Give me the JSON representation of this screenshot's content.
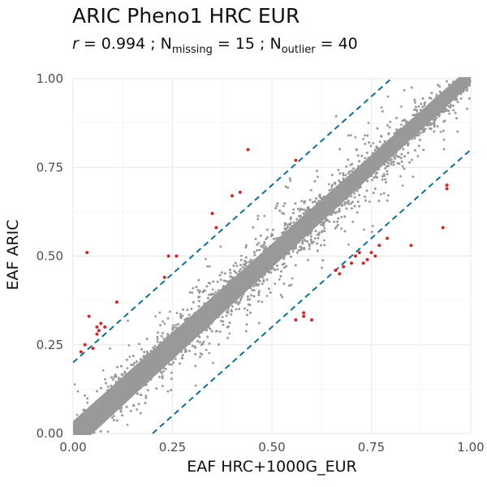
{
  "chart_data": {
    "type": "scatter",
    "title": "ARIC Pheno1 HRC EUR",
    "subtitle": {
      "r_symbol": "r",
      "r_text": " = 0.994 ; N",
      "missing_sub": "missing",
      "missing_text": " = 15 ; N",
      "outlier_sub": "outlier",
      "outlier_text": " = 40"
    },
    "xlabel": "EAF HRC+1000G_EUR",
    "ylabel": "EAF ARIC",
    "xlim": [
      0,
      1
    ],
    "ylim": [
      0,
      1
    ],
    "x_ticks": [
      "0.00",
      "0.25",
      "0.50",
      "0.75",
      "1.00"
    ],
    "y_ticks": [
      "0.00",
      "0.25",
      "0.50",
      "0.75",
      "1.00"
    ],
    "grid": true,
    "reference_lines": [
      {
        "intercept": 0.2,
        "slope": 1,
        "style": "dashed",
        "color": "#0e6f9c"
      },
      {
        "intercept": -0.2,
        "slope": 1,
        "style": "dashed",
        "color": "#0e6f9c"
      }
    ],
    "series": [
      {
        "role": "outlier",
        "color": "#d62728",
        "points": [
          [
            0.02,
            0.23
          ],
          [
            0.03,
            0.25
          ],
          [
            0.035,
            0.51
          ],
          [
            0.04,
            0.33
          ],
          [
            0.05,
            0.24
          ],
          [
            0.06,
            0.28
          ],
          [
            0.06,
            0.3
          ],
          [
            0.065,
            0.29
          ],
          [
            0.07,
            0.31
          ],
          [
            0.08,
            0.3
          ],
          [
            0.11,
            0.37
          ],
          [
            0.23,
            0.44
          ],
          [
            0.24,
            0.5
          ],
          [
            0.26,
            0.5
          ],
          [
            0.35,
            0.62
          ],
          [
            0.36,
            0.58
          ],
          [
            0.4,
            0.67
          ],
          [
            0.42,
            0.68
          ],
          [
            0.44,
            0.8
          ],
          [
            0.56,
            0.77
          ],
          [
            0.56,
            0.32
          ],
          [
            0.58,
            0.33
          ],
          [
            0.58,
            0.34
          ],
          [
            0.6,
            0.32
          ],
          [
            0.66,
            0.46
          ],
          [
            0.67,
            0.45
          ],
          [
            0.68,
            0.47
          ],
          [
            0.7,
            0.48
          ],
          [
            0.71,
            0.5
          ],
          [
            0.72,
            0.51
          ],
          [
            0.73,
            0.48
          ],
          [
            0.74,
            0.49
          ],
          [
            0.75,
            0.51
          ],
          [
            0.76,
            0.5
          ],
          [
            0.77,
            0.53
          ],
          [
            0.79,
            0.55
          ],
          [
            0.85,
            0.53
          ],
          [
            0.93,
            0.58
          ],
          [
            0.94,
            0.69
          ],
          [
            0.94,
            0.7
          ]
        ]
      }
    ],
    "bulk_points_color": "#999999"
  }
}
